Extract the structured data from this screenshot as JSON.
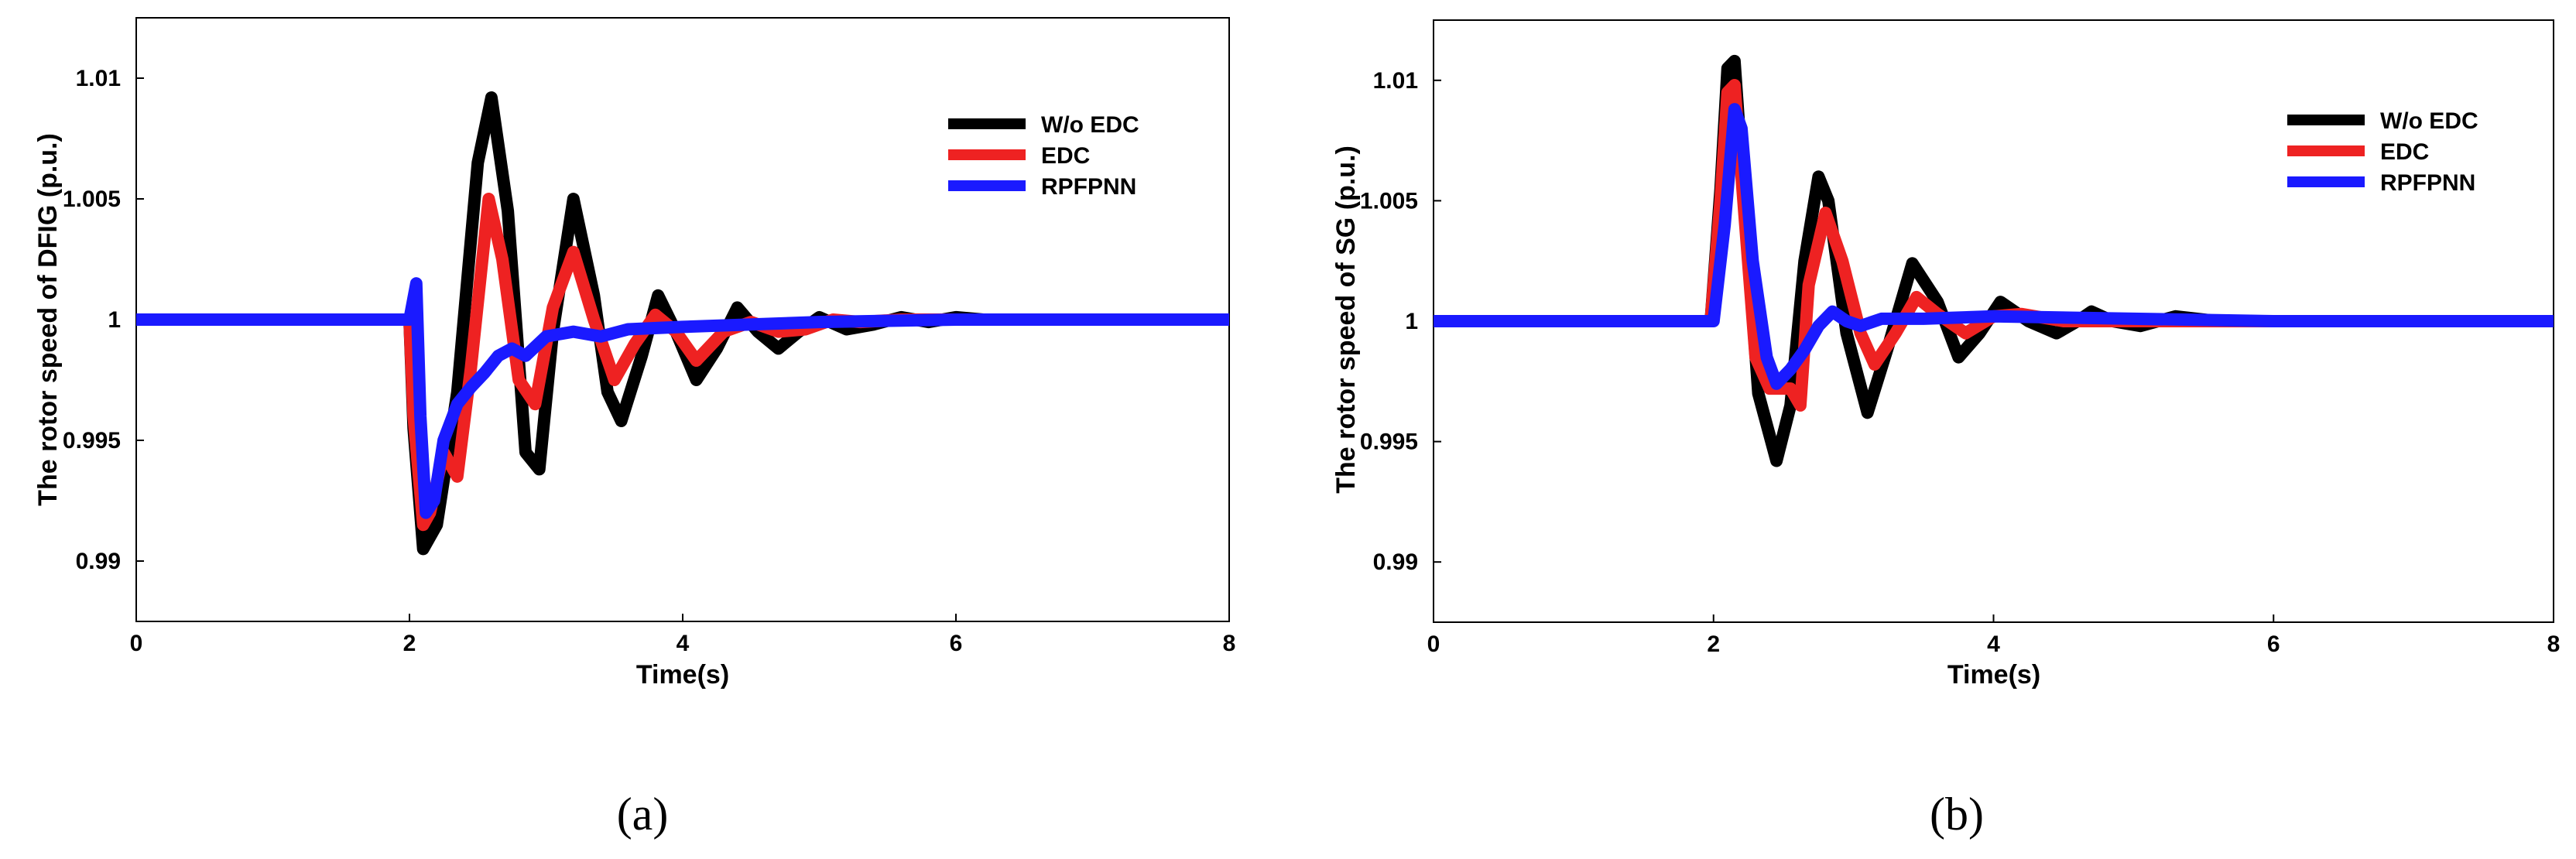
{
  "chart_data": [
    {
      "type": "line",
      "panel_label": "(a)",
      "xlabel": "Time(s)",
      "ylabel": "The rotor speed of DFIG (p.u.)",
      "xlim": [
        0,
        8
      ],
      "ylim": [
        0.9875,
        1.0125
      ],
      "xticks": [
        0,
        2,
        4,
        6,
        8
      ],
      "xtick_labels": [
        "0",
        "2",
        "4",
        "6",
        "8"
      ],
      "yticks": [
        0.99,
        0.995,
        1,
        1.005,
        1.01
      ],
      "ytick_labels": [
        "0.99",
        "0.995",
        "1",
        "1.005",
        "1.01"
      ],
      "grid": false,
      "legend_position": "top-right",
      "series": [
        {
          "name": "W/o EDC",
          "color": "#000000",
          "x": [
            0,
            2.0,
            2.03,
            2.1,
            2.2,
            2.35,
            2.5,
            2.6,
            2.72,
            2.85,
            2.95,
            3.05,
            3.2,
            3.35,
            3.45,
            3.55,
            3.7,
            3.82,
            3.95,
            4.1,
            4.25,
            4.4,
            4.55,
            4.7,
            4.85,
            5.0,
            5.2,
            5.4,
            5.6,
            5.8,
            6.0,
            6.2,
            6.5,
            7.0,
            8.0
          ],
          "y": [
            1,
            1,
            0.9955,
            0.9905,
            0.9915,
            0.997,
            1.0065,
            1.0092,
            1.0045,
            0.9945,
            0.9938,
            0.9995,
            1.005,
            1.001,
            0.997,
            0.9958,
            0.9985,
            1.001,
            0.9995,
            0.9975,
            0.9988,
            1.0005,
            0.9995,
            0.9988,
            0.9995,
            1.0001,
            0.9996,
            0.9998,
            1.0001,
            0.9999,
            1.0001,
            1.0,
            1.0,
            1.0,
            1.0
          ]
        },
        {
          "name": "EDC",
          "color": "#ee2222",
          "x": [
            0,
            2.0,
            2.03,
            2.1,
            2.15,
            2.25,
            2.35,
            2.45,
            2.58,
            2.68,
            2.8,
            2.92,
            3.05,
            3.2,
            3.35,
            3.5,
            3.65,
            3.8,
            3.95,
            4.1,
            4.3,
            4.5,
            4.7,
            4.9,
            5.1,
            5.3,
            5.6,
            6.0,
            6.5,
            7.0,
            8.0
          ],
          "y": [
            1,
            1,
            0.996,
            0.9915,
            0.992,
            0.9945,
            0.9935,
            0.998,
            1.005,
            1.0025,
            0.9975,
            0.9965,
            1.0005,
            1.0028,
            1.0,
            0.9975,
            0.999,
            1.0002,
            0.9995,
            0.9983,
            0.9995,
            0.9999,
            0.9995,
            0.9996,
            1.0,
            0.9999,
            1.0,
            1.0,
            1.0,
            1.0,
            1.0
          ]
        },
        {
          "name": "RPFPNN",
          "color": "#1a1aff",
          "x": [
            0,
            2.0,
            2.05,
            2.08,
            2.12,
            2.18,
            2.25,
            2.35,
            2.45,
            2.55,
            2.65,
            2.75,
            2.85,
            3.0,
            3.2,
            3.4,
            3.6,
            4.0,
            5.0,
            6.0,
            8.0
          ],
          "y": [
            1,
            1,
            1.0015,
            0.996,
            0.992,
            0.9925,
            0.995,
            0.9965,
            0.9972,
            0.9978,
            0.9985,
            0.9988,
            0.9985,
            0.9993,
            0.9995,
            0.9993,
            0.9996,
            0.9997,
            0.9999,
            1.0,
            1.0
          ]
        }
      ]
    },
    {
      "type": "line",
      "panel_label": "(b)",
      "xlabel": "Time(s)",
      "ylabel": "The rotor speed of SG (p.u.)",
      "xlim": [
        0,
        8
      ],
      "ylim": [
        0.9875,
        1.0125
      ],
      "xticks": [
        0,
        2,
        4,
        6,
        8
      ],
      "xtick_labels": [
        "0",
        "2",
        "4",
        "6",
        "8"
      ],
      "yticks": [
        0.99,
        0.995,
        1,
        1.005,
        1.01
      ],
      "ytick_labels": [
        "0.99",
        "0.995",
        "1",
        "1.005",
        "1.01"
      ],
      "grid": false,
      "legend_position": "top-right",
      "series": [
        {
          "name": "W/o EDC",
          "color": "#000000",
          "x": [
            0,
            1.98,
            2.05,
            2.1,
            2.15,
            2.22,
            2.32,
            2.45,
            2.55,
            2.65,
            2.75,
            2.82,
            2.95,
            3.1,
            3.25,
            3.42,
            3.6,
            3.75,
            3.9,
            4.05,
            4.25,
            4.45,
            4.6,
            4.7,
            4.85,
            5.05,
            5.3,
            5.6,
            6.0,
            7.0,
            8.0
          ],
          "y": [
            1,
            1,
            1.0055,
            1.0105,
            1.0108,
            1.005,
            0.997,
            0.9942,
            0.9965,
            1.0025,
            1.006,
            1.005,
            0.9995,
            0.9962,
            0.999,
            1.0024,
            1.0008,
            0.9985,
            0.9995,
            1.0008,
            1.0,
            0.9995,
            1.0,
            1.0004,
            1.0,
            0.9998,
            1.0002,
            1.0,
            1.0,
            1.0,
            1.0
          ]
        },
        {
          "name": "EDC",
          "color": "#ee2222",
          "x": [
            0,
            1.98,
            2.05,
            2.1,
            2.15,
            2.22,
            2.3,
            2.4,
            2.55,
            2.62,
            2.68,
            2.8,
            2.92,
            3.05,
            3.15,
            3.3,
            3.45,
            3.6,
            3.8,
            4.0,
            4.2,
            4.5,
            5.0,
            5.5,
            6.0,
            8.0
          ],
          "y": [
            1,
            1,
            1.005,
            1.0095,
            1.0098,
            1.0045,
            0.9985,
            0.9972,
            0.9972,
            0.9965,
            1.0015,
            1.0045,
            1.0025,
            0.9995,
            0.9982,
            0.9995,
            1.001,
            1.0003,
            0.9995,
            1.0002,
            1.0003,
            1.0,
            1.0,
            1.0,
            1.0,
            1.0
          ]
        },
        {
          "name": "RPFPNN",
          "color": "#1a1aff",
          "x": [
            0,
            2.0,
            2.08,
            2.15,
            2.2,
            2.28,
            2.38,
            2.45,
            2.55,
            2.65,
            2.75,
            2.85,
            2.95,
            3.05,
            3.2,
            3.5,
            4.0,
            5.0,
            6.0,
            8.0
          ],
          "y": [
            1,
            1,
            1.004,
            1.0088,
            1.008,
            1.0025,
            0.9985,
            0.9974,
            0.998,
            0.9988,
            0.9998,
            1.0004,
            1.0,
            0.9998,
            1.0001,
            1.0001,
            1.0002,
            1.0001,
            1.0,
            1.0
          ]
        }
      ]
    }
  ]
}
